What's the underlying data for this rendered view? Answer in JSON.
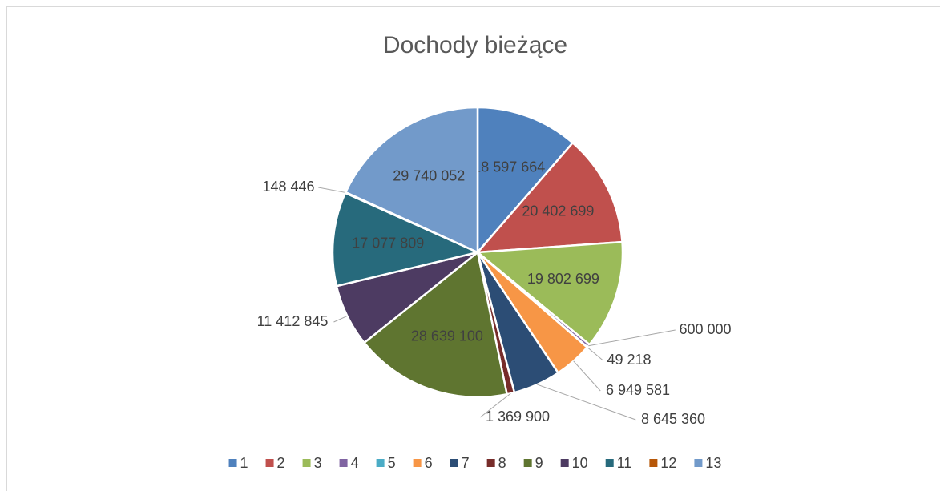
{
  "chart_data": {
    "type": "pie",
    "title": "Dochody bieżące",
    "categories": [
      "1",
      "2",
      "3",
      "4",
      "5",
      "6",
      "7",
      "8",
      "9",
      "10",
      "11",
      "12",
      "13"
    ],
    "values": [
      18597664,
      20402699,
      19802699,
      600000,
      49218,
      6949581,
      8645360,
      1369900,
      28639100,
      11412845,
      17077809,
      148446,
      29740052
    ],
    "value_labels": [
      "18 597 664",
      "20 402 699",
      "19 802 699",
      "600 000",
      "49 218",
      "6 949 581",
      "8 645 360",
      "1 369 900",
      "28 639 100",
      "11 412 845",
      "17 077 809",
      "148 446",
      "29 740 052"
    ],
    "colors": [
      "#4F81BD",
      "#C0504D",
      "#9BBB59",
      "#8064A2",
      "#4BACC6",
      "#F79646",
      "#2C4D75",
      "#772C2A",
      "#5F7530",
      "#4D3B62",
      "#276A7C",
      "#B65708",
      "#729ACA"
    ],
    "legend": "bottom"
  }
}
